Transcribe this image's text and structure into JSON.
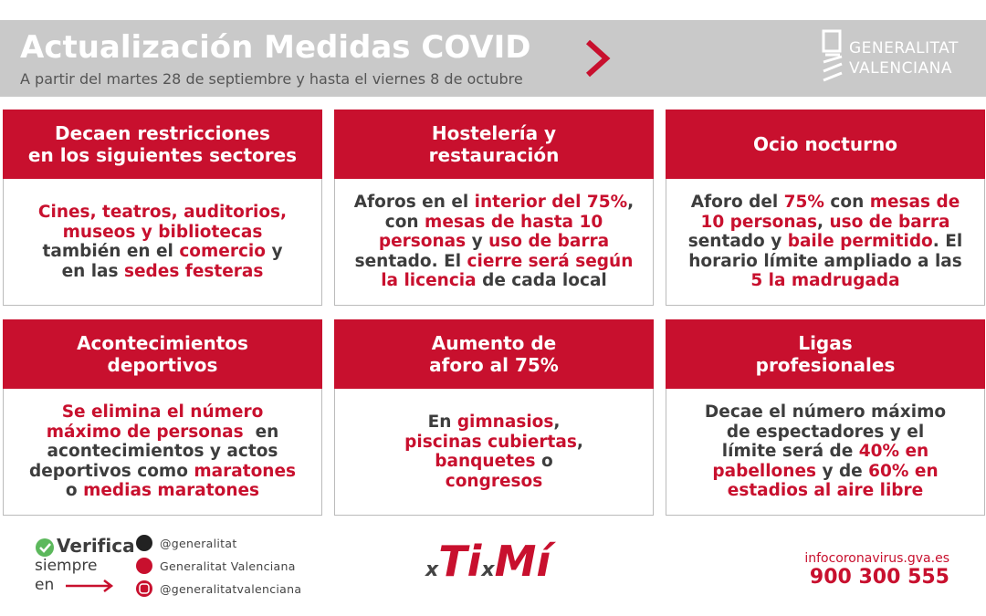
{
  "header": {
    "title": "Actualización Medidas COVID",
    "subtitle": "A partir del martes 28 de septiembre y hasta el viernes 8 de octubre",
    "logo": [
      "GENERALITAT",
      "VALENCIANA"
    ]
  },
  "cards": [
    {
      "title": [
        "Decaen restricciones",
        "en los siguientes sectores"
      ],
      "body": [
        [
          {
            "text": "Cines, teatros, auditorios,",
            "color": "#c8102e"
          }
        ],
        [
          {
            "text": "museos y bibliotecas",
            "color": "#c8102e"
          }
        ],
        [
          {
            "text": "también en el ",
            "color": "#3d3d3d"
          },
          {
            "text": "comercio",
            "color": "#c8102e"
          },
          {
            "text": " y",
            "color": "#3d3d3d"
          }
        ],
        [
          {
            "text": "en las ",
            "color": "#3d3d3d"
          },
          {
            "text": "sedes festeras",
            "color": "#c8102e"
          }
        ]
      ]
    },
    {
      "title": [
        "Hostelería y",
        "restauración"
      ],
      "body": [
        [
          {
            "text": "Aforos en el ",
            "color": "#3d3d3d"
          },
          {
            "text": "interior del 75%",
            "color": "#c8102e"
          },
          {
            "text": ",",
            "color": "#3d3d3d"
          }
        ],
        [
          {
            "text": "con ",
            "color": "#3d3d3d"
          },
          {
            "text": "mesas de hasta 10",
            "color": "#c8102e"
          }
        ],
        [
          {
            "text": "personas",
            "color": "#c8102e"
          },
          {
            "text": " y ",
            "color": "#3d3d3d"
          },
          {
            "text": "uso de barra",
            "color": "#c8102e"
          }
        ],
        [
          {
            "text": "sentado. El ",
            "color": "#3d3d3d"
          },
          {
            "text": "cierre será según",
            "color": "#c8102e"
          }
        ],
        [
          {
            "text": "la licencia",
            "color": "#c8102e"
          },
          {
            "text": " de cada local",
            "color": "#3d3d3d"
          }
        ]
      ]
    },
    {
      "title": [
        "Ocio nocturno"
      ],
      "body": [
        [
          {
            "text": "Aforo del ",
            "color": "#3d3d3d"
          },
          {
            "text": "75%",
            "color": "#c8102e"
          },
          {
            "text": " con ",
            "color": "#3d3d3d"
          },
          {
            "text": "mesas de",
            "color": "#c8102e"
          }
        ],
        [
          {
            "text": "10 personas",
            "color": "#c8102e"
          },
          {
            "text": ", ",
            "color": "#3d3d3d"
          },
          {
            "text": "uso de barra",
            "color": "#c8102e"
          }
        ],
        [
          {
            "text": "sentado y ",
            "color": "#3d3d3d"
          },
          {
            "text": "baile permitido",
            "color": "#c8102e"
          },
          {
            "text": ". El",
            "color": "#3d3d3d"
          }
        ],
        [
          {
            "text": "horario límite ampliado a las",
            "color": "#3d3d3d"
          }
        ],
        [
          {
            "text": "5 la madrugada",
            "color": "#c8102e"
          }
        ]
      ]
    },
    {
      "title": [
        "Acontecimientos",
        "deportivos"
      ],
      "body": [
        [
          {
            "text": "Se elimina el número",
            "color": "#c8102e"
          }
        ],
        [
          {
            "text": "máximo de personas",
            "color": "#c8102e"
          },
          {
            "text": "  en",
            "color": "#3d3d3d"
          }
        ],
        [
          {
            "text": "acontecimientos y actos",
            "color": "#3d3d3d"
          }
        ],
        [
          {
            "text": "deportivos como ",
            "color": "#3d3d3d"
          },
          {
            "text": "maratones",
            "color": "#c8102e"
          }
        ],
        [
          {
            "text": "o ",
            "color": "#3d3d3d"
          },
          {
            "text": "medias maratones",
            "color": "#c8102e"
          }
        ]
      ]
    },
    {
      "title": [
        "Aumento de",
        "aforo al 75%"
      ],
      "body": [
        [
          {
            "text": "En ",
            "color": "#3d3d3d"
          },
          {
            "text": "gimnasios",
            "color": "#c8102e"
          },
          {
            "text": ",",
            "color": "#3d3d3d"
          }
        ],
        [
          {
            "text": "piscinas cubiertas",
            "color": "#c8102e"
          },
          {
            "text": ",",
            "color": "#3d3d3d"
          }
        ],
        [
          {
            "text": "banquetes",
            "color": "#c8102e"
          },
          {
            "text": " o",
            "color": "#3d3d3d"
          }
        ],
        [
          {
            "text": "congresos",
            "color": "#c8102e"
          }
        ]
      ]
    },
    {
      "title": [
        "Ligas",
        "profesionales"
      ],
      "body": [
        [
          {
            "text": "Decae el número máximo",
            "color": "#3d3d3d"
          }
        ],
        [
          {
            "text": "de espectadores y el",
            "color": "#3d3d3d"
          }
        ],
        [
          {
            "text": "límite será de ",
            "color": "#3d3d3d"
          },
          {
            "text": "40% en",
            "color": "#c8102e"
          }
        ],
        [
          {
            "text": "pabellones",
            "color": "#c8102e"
          },
          {
            "text": " y de ",
            "color": "#3d3d3d"
          },
          {
            "text": "60% en",
            "color": "#c8102e"
          }
        ],
        [
          {
            "text": "estadios al aire libre",
            "color": "#c8102e"
          }
        ]
      ]
    }
  ],
  "footer": {
    "verify": {
      "title": "Verifica",
      "lines": [
        "siempre",
        "en"
      ]
    },
    "social": [
      "@generalitat",
      "Generalitat Valenciana",
      "@generalitatvalenciana"
    ],
    "slogan": [
      "x",
      "Ti",
      "x",
      "Mí"
    ],
    "website": "infocoronavirus.gva.es",
    "phone": "900 300 555"
  }
}
